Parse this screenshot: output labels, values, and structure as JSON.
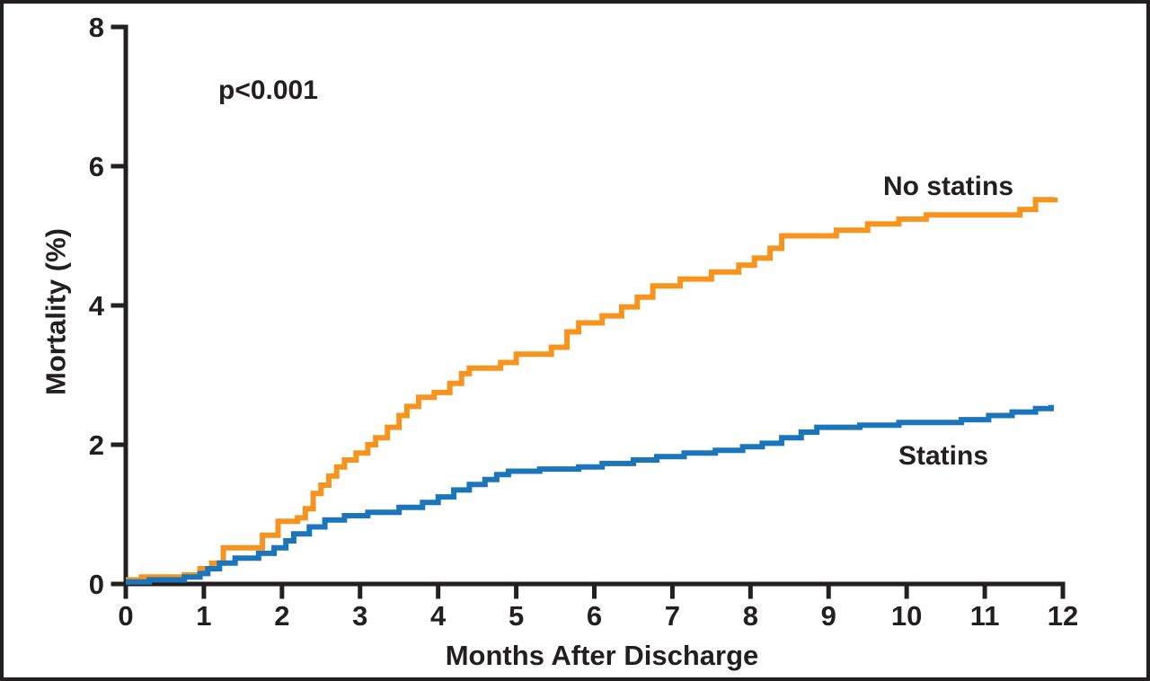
{
  "chart_data": {
    "type": "line",
    "subtype": "kaplan-meier-step",
    "title": "",
    "xlabel": "Months After Discharge",
    "ylabel": "Mortality (%)",
    "xlim": [
      0,
      12
    ],
    "ylim": [
      0,
      8
    ],
    "x_ticks": [
      0,
      1,
      2,
      3,
      4,
      5,
      6,
      7,
      8,
      9,
      10,
      11,
      12
    ],
    "y_ticks": [
      0,
      2,
      4,
      6,
      8
    ],
    "grid": false,
    "legend_position": "inline-labels",
    "annotation": "p<0.001",
    "axis_color": "#231F20",
    "frame_border_color": "#231F20",
    "series": [
      {
        "name": "No statins",
        "color": "#F7941E",
        "points": [
          [
            0,
            0.06
          ],
          [
            0.2,
            0.1
          ],
          [
            0.75,
            0.13
          ],
          [
            0.95,
            0.22
          ],
          [
            1.1,
            0.3
          ],
          [
            1.25,
            0.52
          ],
          [
            1.75,
            0.7
          ],
          [
            1.95,
            0.9
          ],
          [
            2.2,
            0.95
          ],
          [
            2.3,
            1.08
          ],
          [
            2.4,
            1.3
          ],
          [
            2.5,
            1.42
          ],
          [
            2.6,
            1.55
          ],
          [
            2.7,
            1.68
          ],
          [
            2.8,
            1.78
          ],
          [
            2.95,
            1.88
          ],
          [
            3.1,
            2.0
          ],
          [
            3.2,
            2.1
          ],
          [
            3.35,
            2.25
          ],
          [
            3.5,
            2.42
          ],
          [
            3.6,
            2.55
          ],
          [
            3.75,
            2.68
          ],
          [
            3.95,
            2.75
          ],
          [
            4.15,
            2.88
          ],
          [
            4.3,
            3.02
          ],
          [
            4.4,
            3.1
          ],
          [
            4.8,
            3.18
          ],
          [
            5.0,
            3.3
          ],
          [
            5.45,
            3.4
          ],
          [
            5.65,
            3.62
          ],
          [
            5.8,
            3.75
          ],
          [
            6.1,
            3.85
          ],
          [
            6.35,
            3.98
          ],
          [
            6.55,
            4.12
          ],
          [
            6.75,
            4.28
          ],
          [
            7.1,
            4.38
          ],
          [
            7.5,
            4.48
          ],
          [
            7.85,
            4.58
          ],
          [
            8.05,
            4.68
          ],
          [
            8.25,
            4.82
          ],
          [
            8.4,
            5.0
          ],
          [
            9.1,
            5.08
          ],
          [
            9.5,
            5.17
          ],
          [
            9.9,
            5.24
          ],
          [
            10.25,
            5.3
          ],
          [
            11.45,
            5.38
          ],
          [
            11.65,
            5.52
          ],
          [
            11.9,
            5.55
          ]
        ]
      },
      {
        "name": "Statins",
        "color": "#1B75BB",
        "points": [
          [
            0,
            0.03
          ],
          [
            0.3,
            0.06
          ],
          [
            0.75,
            0.1
          ],
          [
            0.95,
            0.15
          ],
          [
            1.05,
            0.22
          ],
          [
            1.2,
            0.3
          ],
          [
            1.4,
            0.37
          ],
          [
            1.7,
            0.44
          ],
          [
            1.9,
            0.52
          ],
          [
            2.05,
            0.62
          ],
          [
            2.15,
            0.72
          ],
          [
            2.35,
            0.82
          ],
          [
            2.55,
            0.92
          ],
          [
            2.8,
            0.98
          ],
          [
            3.1,
            1.03
          ],
          [
            3.5,
            1.1
          ],
          [
            3.8,
            1.17
          ],
          [
            4.0,
            1.25
          ],
          [
            4.2,
            1.35
          ],
          [
            4.4,
            1.43
          ],
          [
            4.6,
            1.5
          ],
          [
            4.75,
            1.57
          ],
          [
            4.9,
            1.62
          ],
          [
            5.3,
            1.65
          ],
          [
            5.8,
            1.68
          ],
          [
            6.1,
            1.73
          ],
          [
            6.5,
            1.78
          ],
          [
            6.8,
            1.83
          ],
          [
            7.15,
            1.88
          ],
          [
            7.55,
            1.92
          ],
          [
            7.9,
            1.97
          ],
          [
            8.15,
            2.02
          ],
          [
            8.4,
            2.1
          ],
          [
            8.65,
            2.18
          ],
          [
            8.85,
            2.25
          ],
          [
            9.4,
            2.28
          ],
          [
            9.9,
            2.32
          ],
          [
            10.7,
            2.36
          ],
          [
            11.05,
            2.42
          ],
          [
            11.35,
            2.47
          ],
          [
            11.65,
            2.52
          ],
          [
            11.85,
            2.57
          ]
        ]
      }
    ]
  }
}
